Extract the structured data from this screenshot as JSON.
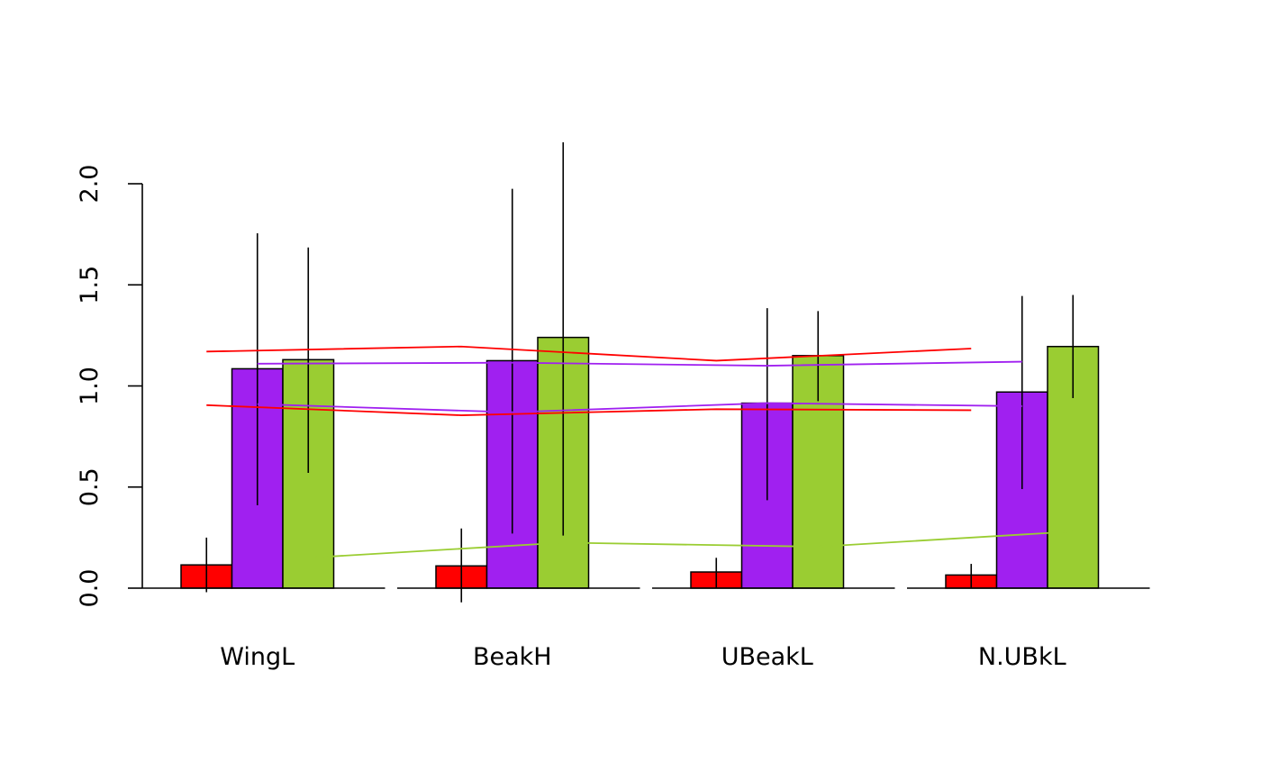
{
  "chart_data": {
    "type": "bar",
    "title": "",
    "xlabel": "",
    "ylabel": "",
    "ylim": [
      0,
      2.2
    ],
    "yticks": [
      0.0,
      0.5,
      1.0,
      1.5,
      2.0
    ],
    "ytick_labels": [
      "0.0",
      "0.5",
      "1.0",
      "1.5",
      "2.0"
    ],
    "grid": false,
    "legend": "none",
    "categories": [
      "WingL",
      "BeakH",
      "UBeakL",
      "N.UBkL"
    ],
    "series": [
      {
        "color": "#ff0000",
        "values": [
          0.115,
          0.11,
          0.08,
          0.065
        ],
        "err_low": [
          -0.02,
          -0.07,
          0.0,
          0.0
        ],
        "err_high": [
          0.25,
          0.295,
          0.15,
          0.12
        ]
      },
      {
        "color": "#a020f0",
        "values": [
          1.085,
          1.125,
          0.915,
          0.97
        ],
        "err_low": [
          0.41,
          0.27,
          0.435,
          0.49
        ],
        "err_high": [
          1.755,
          1.975,
          1.385,
          1.445
        ]
      },
      {
        "color": "#9acd32",
        "values": [
          1.13,
          1.24,
          1.15,
          1.195
        ],
        "err_low": [
          0.57,
          0.26,
          0.925,
          0.94
        ],
        "err_high": [
          1.685,
          2.205,
          1.37,
          1.45
        ]
      }
    ],
    "lines": [
      {
        "color": "#ff0000",
        "anchor_series": 0,
        "values": [
          1.17,
          1.195,
          1.125,
          1.185
        ]
      },
      {
        "color": "#ff0000",
        "anchor_series": 0,
        "values": [
          0.905,
          0.855,
          0.885,
          0.88
        ]
      },
      {
        "color": "#a020f0",
        "anchor_series": 1,
        "values": [
          1.11,
          1.115,
          1.1,
          1.12
        ]
      },
      {
        "color": "#a020f0",
        "anchor_series": 1,
        "values": [
          0.91,
          0.87,
          0.915,
          0.9
        ]
      },
      {
        "color": "#9acd32",
        "anchor_series": 2,
        "values": [
          0.15,
          0.225,
          0.205,
          0.28
        ]
      }
    ]
  }
}
